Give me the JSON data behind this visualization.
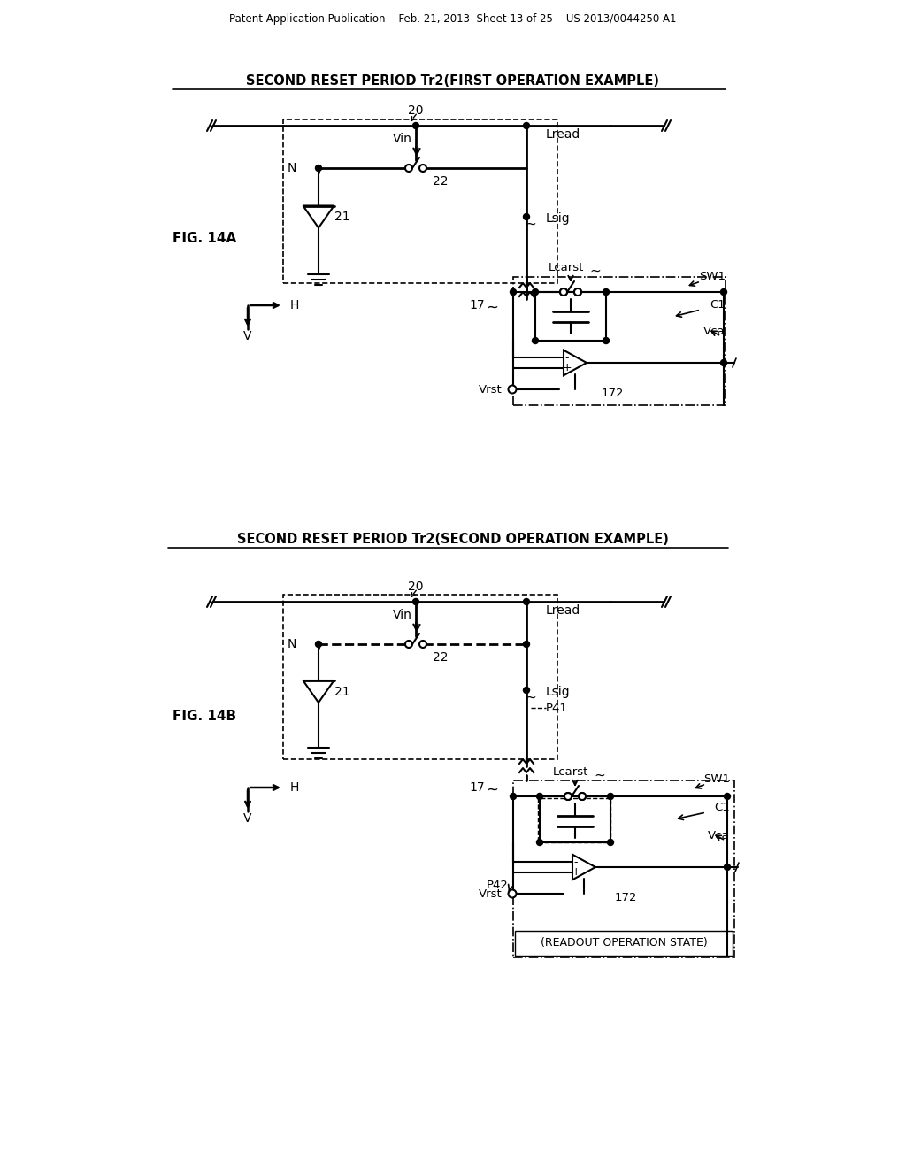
{
  "bg_color": "#ffffff",
  "header": "Patent Application Publication    Feb. 21, 2013  Sheet 13 of 25    US 2013/0044250 A1",
  "title_a": "SECOND RESET PERIOD Tr2(FIRST OPERATION EXAMPLE)",
  "title_b": "SECOND RESET PERIOD Tr2(SECOND OPERATION EXAMPLE)",
  "fig_label_a": "FIG. 14A",
  "fig_label_b": "FIG. 14B",
  "readout_label": "(READOUT OPERATION STATE)"
}
